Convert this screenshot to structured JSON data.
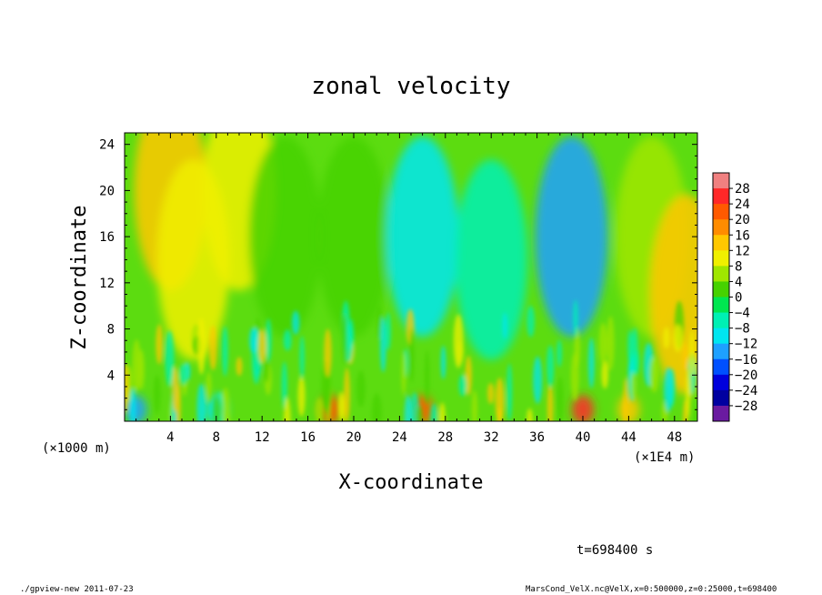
{
  "chart_data": {
    "type": "heatmap",
    "title": "zonal velocity",
    "xlabel": "X-coordinate",
    "ylabel": "Z-coordinate",
    "x_unit_left": "(×1000 m)",
    "x_unit_right": "(×1E4 m)",
    "xlim": [
      0,
      50
    ],
    "ylim": [
      0,
      25
    ],
    "x_ticks": [
      4,
      8,
      12,
      16,
      20,
      24,
      28,
      32,
      36,
      40,
      44,
      48
    ],
    "y_ticks": [
      4,
      8,
      12,
      16,
      20,
      24
    ],
    "colorbar_levels": [
      28,
      24,
      20,
      16,
      12,
      8,
      4,
      0,
      -4,
      -8,
      -12,
      -16,
      -20,
      -24,
      -28
    ],
    "colorbar_colors": [
      "#f08080",
      "#ff2828",
      "#ff5a00",
      "#ff8c00",
      "#ffc800",
      "#f0f000",
      "#a0e600",
      "#46d200",
      "#00e650",
      "#00f0b4",
      "#00e6f0",
      "#1ea0ff",
      "#0050ff",
      "#0000dc",
      "#0000a0",
      "#6a1aa0"
    ],
    "grid": false,
    "regions": [
      {
        "x": 4,
        "z": 20,
        "u": 14
      },
      {
        "x": 6,
        "z": 14,
        "u": 10
      },
      {
        "x": 10,
        "z": 20,
        "u": 8
      },
      {
        "x": 14,
        "z": 16,
        "u": 2
      },
      {
        "x": 20,
        "z": 16,
        "u": 0
      },
      {
        "x": 26,
        "z": 16,
        "u": -10
      },
      {
        "x": 32,
        "z": 14,
        "u": -6
      },
      {
        "x": 39,
        "z": 16,
        "u": -16
      },
      {
        "x": 46,
        "z": 16,
        "u": 4
      },
      {
        "x": 49,
        "z": 11,
        "u": 14
      },
      {
        "x": 1,
        "z": 1,
        "u": -16
      },
      {
        "x": 8,
        "z": 1,
        "u": -12
      },
      {
        "x": 18,
        "z": 1,
        "u": 20
      },
      {
        "x": 26,
        "z": 1,
        "u": 20
      },
      {
        "x": 40,
        "z": 1,
        "u": 24
      },
      {
        "x": 44,
        "z": 1,
        "u": 12
      }
    ]
  },
  "annotation": "t=698400 s",
  "footer": {
    "left": "./gpview-new  2011-07-23",
    "right": "MarsCond_VelX.nc@VelX,x=0:500000,z=0:25000,t=698400"
  }
}
